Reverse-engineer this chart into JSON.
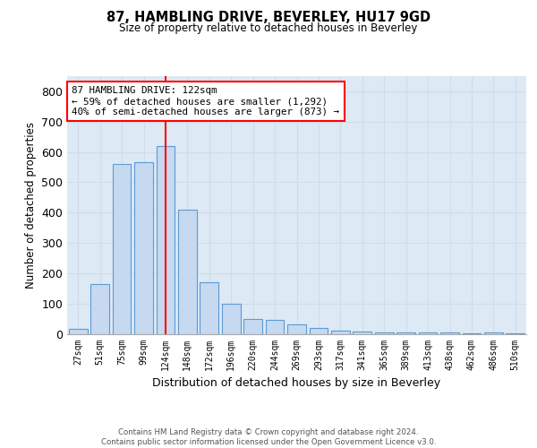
{
  "title1": "87, HAMBLING DRIVE, BEVERLEY, HU17 9GD",
  "title2": "Size of property relative to detached houses in Beverley",
  "xlabel": "Distribution of detached houses by size in Beverley",
  "ylabel": "Number of detached properties",
  "categories": [
    "27sqm",
    "51sqm",
    "75sqm",
    "99sqm",
    "124sqm",
    "148sqm",
    "172sqm",
    "196sqm",
    "220sqm",
    "244sqm",
    "269sqm",
    "293sqm",
    "317sqm",
    "341sqm",
    "365sqm",
    "389sqm",
    "413sqm",
    "438sqm",
    "462sqm",
    "486sqm",
    "510sqm"
  ],
  "values": [
    15,
    165,
    560,
    565,
    620,
    410,
    170,
    100,
    50,
    45,
    30,
    20,
    10,
    8,
    5,
    5,
    4,
    3,
    2,
    5,
    2
  ],
  "bar_color": "#c6d9f0",
  "bar_edge_color": "#5b9bd5",
  "vline_x": 4,
  "vline_color": "red",
  "annotation_text": "87 HAMBLING DRIVE: 122sqm\n← 59% of detached houses are smaller (1,292)\n40% of semi-detached houses are larger (873) →",
  "annotation_box_color": "white",
  "annotation_box_edge_color": "red",
  "footer": "Contains HM Land Registry data © Crown copyright and database right 2024.\nContains public sector information licensed under the Open Government Licence v3.0.",
  "ylim": [
    0,
    850
  ],
  "yticks": [
    0,
    100,
    200,
    300,
    400,
    500,
    600,
    700,
    800
  ],
  "grid_color": "#d0dce8",
  "background_color": "#dde9f5"
}
